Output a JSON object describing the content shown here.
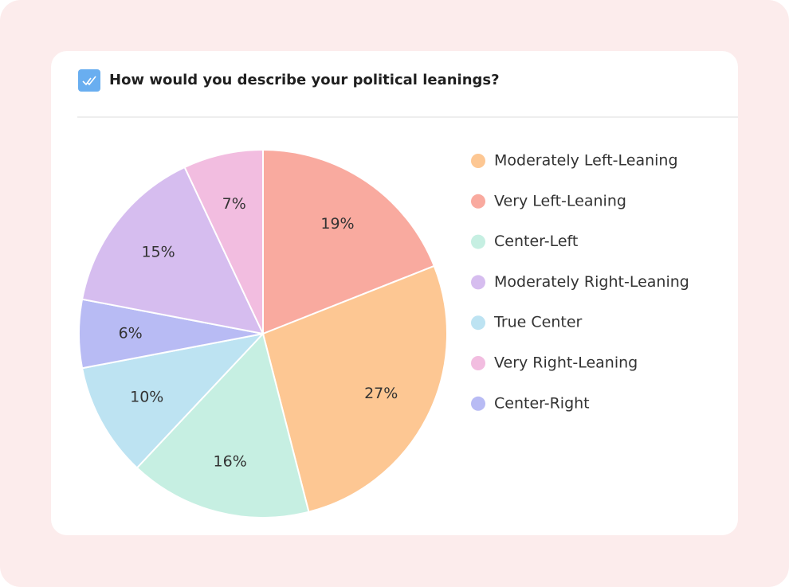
{
  "chart_data": {
    "type": "pie",
    "title": "How would you describe your political leanings?",
    "categories": [
      "Very Left-Leaning",
      "Moderately Left-Leaning",
      "Center-Left",
      "True Center",
      "Center-Right",
      "Moderately Right-Leaning",
      "Very Right-Leaning"
    ],
    "values": [
      19,
      27,
      16,
      10,
      6,
      15,
      7
    ],
    "value_labels": [
      "19%",
      "27%",
      "16%",
      "10%",
      "6%",
      "15%",
      "7%"
    ],
    "colors": [
      "#f9aa9f",
      "#fdc793",
      "#c6efe2",
      "#bde3f2",
      "#b8bbf4",
      "#d6bdef",
      "#f2bde0"
    ],
    "legend": [
      "Moderately Left-Leaning",
      "Very Left-Leaning",
      "Center-Left",
      "Moderately Right-Leaning",
      "True Center",
      "Very Right-Leaning",
      "Center-Right"
    ]
  }
}
